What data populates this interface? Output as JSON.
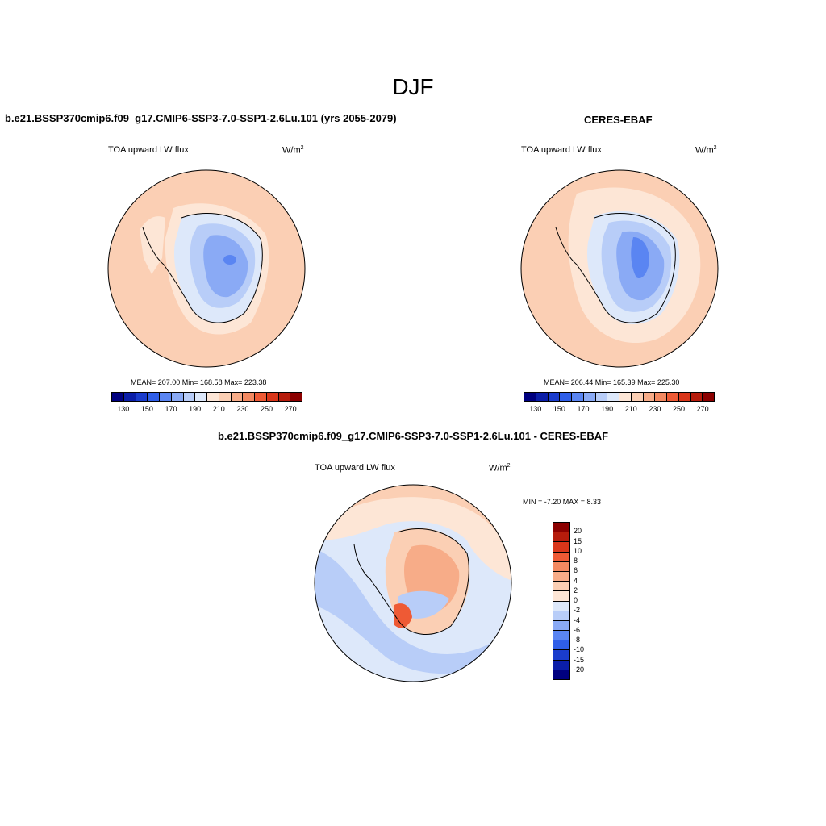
{
  "season": "DJF",
  "panels": {
    "left": {
      "title": "b.e21.BSSP370cmip6.f09_g17.CMIP6-SSP3-7.0-SSP1-2.6Lu.101 (yrs 2055-2079)",
      "variable": "TOA upward LW flux",
      "unit": "W/m",
      "unit_sup": "2",
      "stats": "MEAN= 207.00  Min= 168.58  Max= 223.38"
    },
    "right": {
      "title": "CERES-EBAF",
      "variable": "TOA upward LW flux",
      "unit": "W/m",
      "unit_sup": "2",
      "stats": "MEAN= 206.44  Min= 165.39  Max= 225.30"
    },
    "diff": {
      "title": "b.e21.BSSP370cmip6.f09_g17.CMIP6-SSP3-7.0-SSP1-2.6Lu.101 - CERES-EBAF",
      "variable": "TOA upward LW flux",
      "unit": "W/m",
      "unit_sup": "2",
      "stats": "MIN =  -7.20 MAX =   8.33"
    }
  },
  "abs_colorbar": {
    "colors": [
      "#00007f",
      "#0b1ea8",
      "#1a3ccc",
      "#2f5ee8",
      "#5a85f2",
      "#8aaaf5",
      "#b8cdf8",
      "#dde8fa",
      "#fde6d6",
      "#fbcfb4",
      "#f7ac88",
      "#f38961",
      "#ee5a35",
      "#d9361a",
      "#b61c0c",
      "#8b0000"
    ],
    "ticks": [
      "130",
      "150",
      "170",
      "190",
      "210",
      "230",
      "250",
      "270"
    ]
  },
  "diff_colorbar": {
    "colors": [
      "#8b0000",
      "#b61c0c",
      "#d9361a",
      "#ee5a35",
      "#f38961",
      "#f7ac88",
      "#fbcfb4",
      "#fde6d6",
      "#dde8fa",
      "#b8cdf8",
      "#8aaaf5",
      "#5a85f2",
      "#2f5ee8",
      "#1a3ccc",
      "#0b1ea8",
      "#00007f"
    ],
    "labels": [
      "20",
      "15",
      "10",
      "8",
      "6",
      "4",
      "2",
      "0",
      "-2",
      "-4",
      "-6",
      "-8",
      "-10",
      "-15",
      "-20"
    ]
  }
}
